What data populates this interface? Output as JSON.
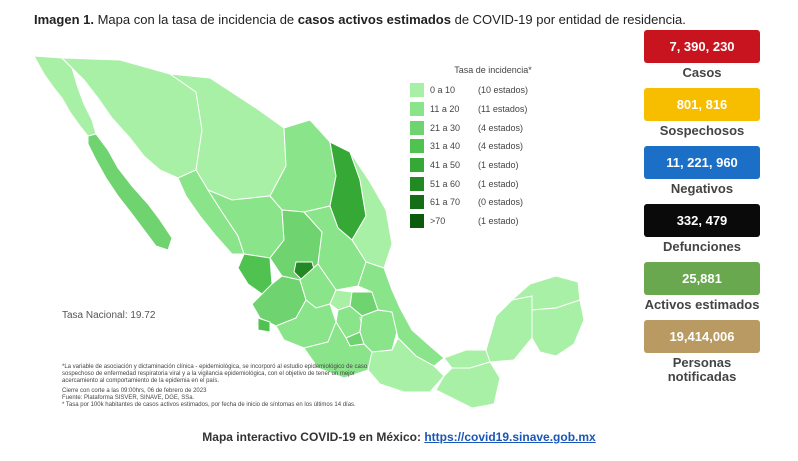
{
  "title": {
    "prefix": "Imagen 1.",
    "part1": " Mapa con la tasa de incidencia de ",
    "bold": "casos activos estimados",
    "part2": " de COVID-19 por entidad de residencia."
  },
  "legend": {
    "heading": "Tasa de incidencia*",
    "items": [
      {
        "range": "0 a 10",
        "count": "(10 estados)",
        "color": "#a8f0a6"
      },
      {
        "range": "11 a 20",
        "count": "(11 estados)",
        "color": "#8ae48a"
      },
      {
        "range": "21 a 30",
        "count": "(4 estados)",
        "color": "#6fd36f"
      },
      {
        "range": "31 a 40",
        "count": "(4 estados)",
        "color": "#4fc24f"
      },
      {
        "range": "41 a 50",
        "count": "(1 estado)",
        "color": "#36a836"
      },
      {
        "range": "51 a 60",
        "count": "(1 estado)",
        "color": "#238a23"
      },
      {
        "range": "61 a 70",
        "count": "(0 estados)",
        "color": "#156e15"
      },
      {
        "range": ">70",
        "count": "(1 estado)",
        "color": "#0c5a0c"
      }
    ]
  },
  "tasa_nacional": "Tasa Nacional: 19.72",
  "notes": [
    "*La variable de asociación y dictaminación clínica - epidemiológica, se incorporó al estudio epidemiológico de caso sospechoso de enfermedad respiratoria viral y a la vigilancia epidemiológica, con el objetivo de tener un mejor acercamiento al comportamiento de la epidemia en el país.",
    "Cierre con corte a las 09:00hrs, 06 de febrero de 2023\nFuente: Plataforma SISVER, SINAVE, DGE, SSa.\n* Tasa por 100k habitantes de casos activos estimados, por fecha de inicio de síntomas en los últimos 14 días."
  ],
  "stats": [
    {
      "value": "7, 390, 230",
      "label": "Casos",
      "color": "#c8141e"
    },
    {
      "value": "801, 816",
      "label": "Sospechosos",
      "color": "#f7be00"
    },
    {
      "value": "11, 221, 960",
      "label": "Negativos",
      "color": "#1c6fc6"
    },
    {
      "value": "332, 479",
      "label": "Defunciones",
      "color": "#0a0a0a"
    },
    {
      "value": "25,881",
      "label": "Activos estimados",
      "color": "#6aa84f"
    },
    {
      "value": "19,414,006",
      "label": "Personas notificadas",
      "color": "#b99a62"
    }
  ],
  "footer": {
    "text": "Mapa interactivo COVID-19 en México: ",
    "link": "https://covid19.sinave.gob.mx"
  }
}
